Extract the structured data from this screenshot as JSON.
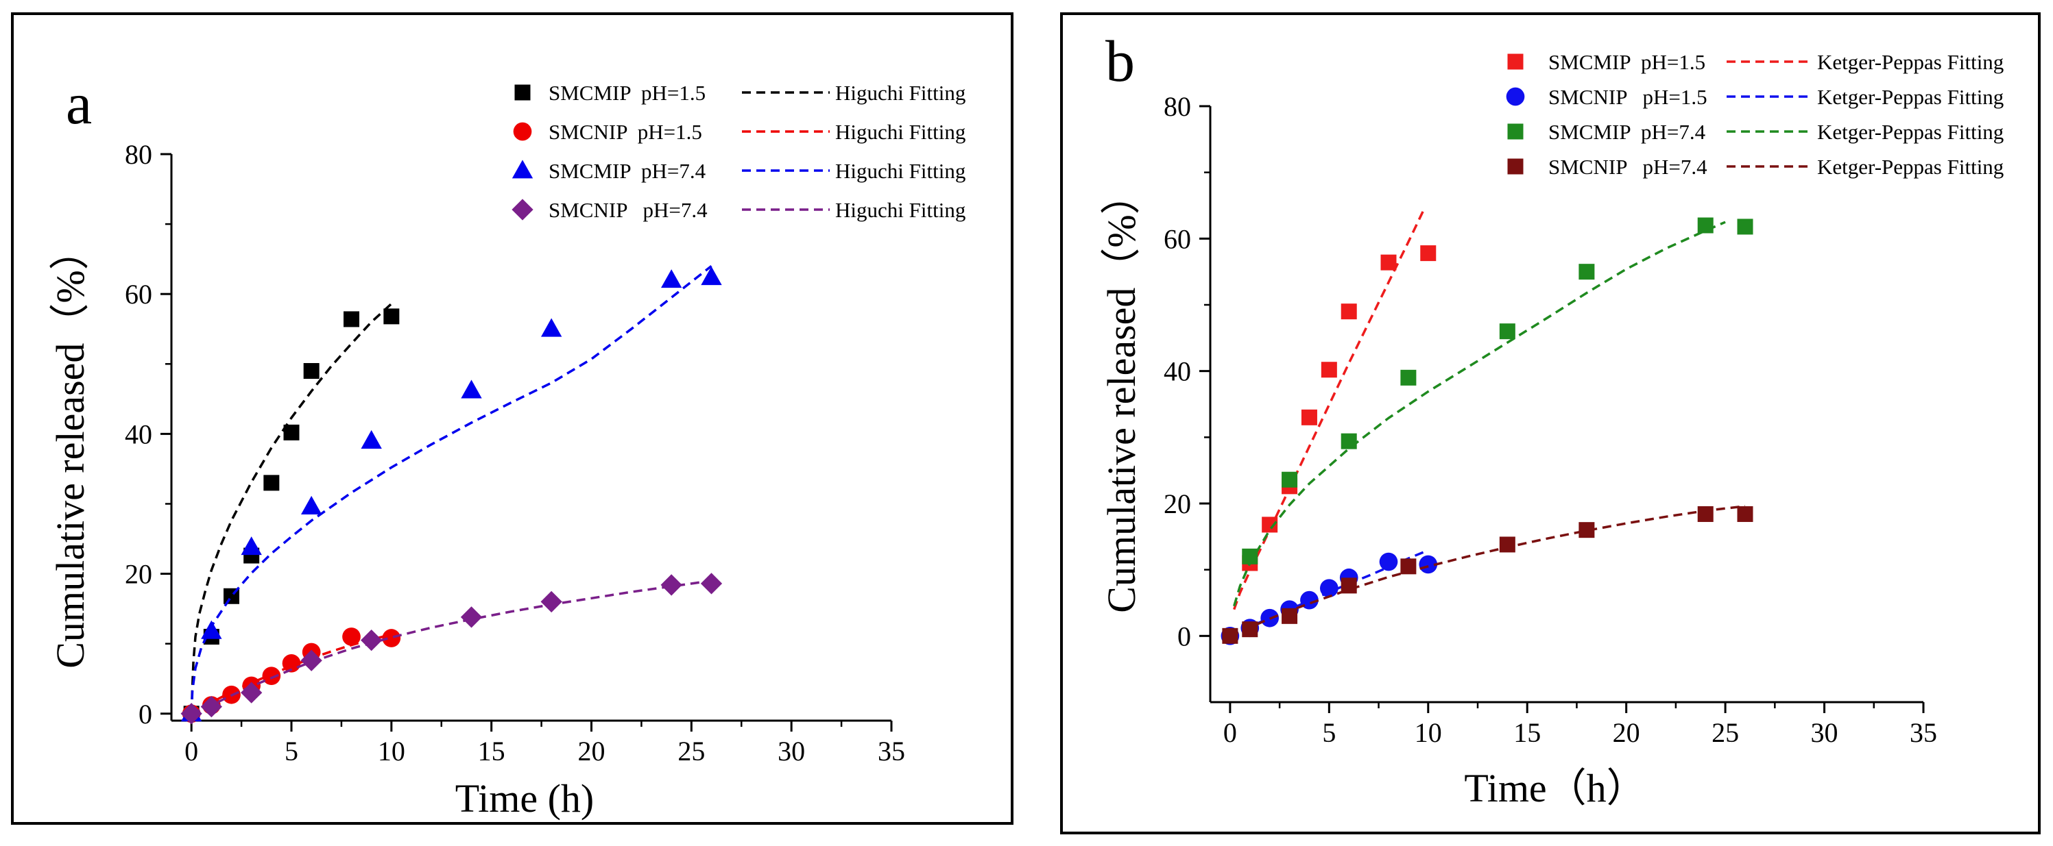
{
  "chart_data": [
    {
      "type": "scatter",
      "panel_label": "a",
      "xlabel": "Time (h)",
      "ylabel": "Cumulative released（%）",
      "xlim": [
        -1,
        35
      ],
      "ylim": [
        -1,
        80
      ],
      "xticks": [
        "0",
        "5",
        "10",
        "15",
        "20",
        "25",
        "30",
        "35"
      ],
      "yticks": [
        "0",
        "20",
        "40",
        "60",
        "80"
      ],
      "legend_position": "top-right",
      "series": [
        {
          "name": "SMCMIP  pH=1.5",
          "fit_name": "Higuchi Fitting",
          "color": "#000000",
          "marker": "square",
          "x": [
            0,
            1,
            2,
            3,
            4,
            5,
            6,
            8,
            10
          ],
          "y": [
            0,
            11,
            16.8,
            22.6,
            33,
            40.2,
            49,
            56.4,
            56.8
          ],
          "fit": {
            "x": [
              0,
              0.05,
              0.1,
              0.2,
              0.4,
              0.7,
              1,
              1.5,
              2,
              3,
              4,
              5,
              6,
              7,
              8,
              9,
              10
            ],
            "y": [
              0,
              4,
              7.5,
              11,
              14.3,
              17.6,
              20.5,
              24.3,
              27.6,
              33.1,
              38,
              42.3,
              46.1,
              49.7,
              52.9,
              56,
              58.6
            ]
          }
        },
        {
          "name": "SMCNIP  pH=1.5",
          "fit_name": "Higuchi Fitting",
          "color": "#ee0000",
          "marker": "circle",
          "x": [
            0,
            1,
            2,
            3,
            4,
            5,
            6,
            8,
            10
          ],
          "y": [
            0,
            1.2,
            2.7,
            4,
            5.4,
            7.2,
            8.8,
            11,
            10.8
          ],
          "fit": {
            "x": [
              0,
              1,
              2,
              3,
              4,
              5,
              6,
              7,
              8,
              9,
              10
            ],
            "y": [
              0,
              1.6,
              3.1,
              4.4,
              5.6,
              6.8,
              7.9,
              8.9,
              9.8,
              10.6,
              11.3
            ]
          }
        },
        {
          "name": "SMCMIP  pH=7.4",
          "fit_name": "Higuchi Fitting",
          "color": "#0000ee",
          "marker": "triangle",
          "x": [
            0,
            1,
            3,
            6,
            9,
            14,
            18,
            24,
            26
          ],
          "y": [
            0,
            11.8,
            23.8,
            29.6,
            39,
            46.2,
            55,
            62,
            62.4
          ],
          "fit": {
            "x": [
              0,
              0.05,
              0.2,
              0.5,
              1,
              2,
              3,
              4,
              5,
              6,
              8,
              10,
              12,
              14,
              16,
              18,
              20,
              22,
              24,
              26
            ],
            "y": [
              0,
              3.3,
              6.5,
              9.5,
              12.5,
              16.8,
              20.1,
              22.9,
              25.3,
              27.6,
              31.6,
              35.2,
              38.5,
              41.6,
              44.5,
              47.3,
              50.7,
              55,
              59.5,
              64
            ]
          }
        },
        {
          "name": "SMCNIP   pH=7.4",
          "fit_name": "Higuchi Fitting",
          "color": "#7a1f8a",
          "marker": "diamond",
          "x": [
            0,
            1,
            3,
            6,
            9,
            14,
            18,
            24,
            26
          ],
          "y": [
            0,
            1,
            3,
            7.6,
            10.5,
            13.8,
            16,
            18.4,
            18.6
          ],
          "fit": {
            "x": [
              0,
              1,
              2,
              3,
              4,
              5,
              6,
              8,
              10,
              12,
              14,
              16,
              18,
              20,
              22,
              24,
              26
            ],
            "y": [
              0,
              1.2,
              2.6,
              3.9,
              5.1,
              6.3,
              7.4,
              9.3,
              10.9,
              12.3,
              13.5,
              14.6,
              15.6,
              16.5,
              17.4,
              18.2,
              19
            ]
          }
        }
      ]
    },
    {
      "type": "scatter",
      "panel_label": "b",
      "xlabel": "Time（h）",
      "ylabel": "Cumulative released（%）",
      "xlim": [
        -1,
        35
      ],
      "ylim": [
        -10,
        80
      ],
      "xticks": [
        "0",
        "5",
        "10",
        "15",
        "20",
        "25",
        "30",
        "35"
      ],
      "yticks": [
        "0",
        "20",
        "40",
        "60",
        "80"
      ],
      "legend_position": "top-right",
      "series": [
        {
          "name": "SMCMIP  pH=1.5",
          "fit_name": "Ketger-Peppas Fitting",
          "color": "#ee1c1c",
          "marker": "square",
          "x": [
            1,
            2,
            3,
            4,
            5,
            6,
            8,
            10
          ],
          "y": [
            11,
            16.8,
            22.6,
            33,
            40.2,
            49,
            56.4,
            57.8
          ],
          "fit": {
            "x": [
              0.2,
              0.5,
              1,
              2,
              3,
              4,
              5,
              6,
              7,
              8,
              9,
              9.8
            ],
            "y": [
              4,
              6.5,
              9.8,
              16,
              22.3,
              28.6,
              34.9,
              41.2,
              47.3,
              53.4,
              59.5,
              64.5
            ]
          }
        },
        {
          "name": "SMCNIP   pH=1.5",
          "fit_name": "Ketger-Peppas Fitting",
          "color": "#1010ee",
          "marker": "circle",
          "x": [
            0,
            1,
            2,
            3,
            4,
            5,
            6,
            8,
            10
          ],
          "y": [
            0,
            1.2,
            2.7,
            4,
            5.4,
            7.2,
            8.8,
            11.2,
            10.8
          ],
          "fit": {
            "x": [
              0,
              1,
              2,
              3,
              4,
              5,
              6,
              7,
              8,
              9,
              9.8
            ],
            "y": [
              0,
              1.4,
              2.7,
              4,
              5.3,
              6.6,
              7.9,
              9.1,
              10.4,
              11.7,
              12.7
            ]
          }
        },
        {
          "name": "SMCMIP  pH=7.4",
          "fit_name": "Ketger-Peppas Fitting",
          "color": "#1f8a1f",
          "marker": "square",
          "x": [
            1,
            3,
            6,
            9,
            14,
            18,
            24,
            26
          ],
          "y": [
            12,
            23.6,
            29.4,
            39,
            46,
            55,
            62,
            61.8
          ],
          "fit": {
            "x": [
              0.2,
              0.5,
              1,
              2,
              3,
              4,
              6,
              8,
              10,
              12,
              14,
              16,
              18,
              20,
              22,
              24,
              25
            ],
            "y": [
              4.5,
              7.5,
              11,
              16,
              19.8,
              23,
              28.3,
              32.9,
              36.9,
              40.6,
              44.3,
              48,
              51.8,
              55.4,
              58.5,
              61.2,
              62.5
            ]
          }
        },
        {
          "name": "SMCNIP   pH=7.4",
          "fit_name": "Ketger-Peppas Fitting",
          "color": "#7a1010",
          "marker": "square",
          "x": [
            0,
            1,
            3,
            6,
            9,
            14,
            18,
            24,
            26
          ],
          "y": [
            0,
            1,
            3,
            7.6,
            10.5,
            13.8,
            16,
            18.4,
            18.4
          ],
          "fit": {
            "x": [
              0,
              1,
              2,
              3,
              4,
              6,
              8,
              10,
              12,
              14,
              16,
              18,
              20,
              22,
              24,
              26
            ],
            "y": [
              0,
              1.3,
              2.6,
              3.8,
              4.9,
              7,
              8.9,
              10.5,
              12,
              13.4,
              14.7,
              15.9,
              17,
              18,
              18.9,
              19.6
            ]
          }
        }
      ]
    }
  ]
}
